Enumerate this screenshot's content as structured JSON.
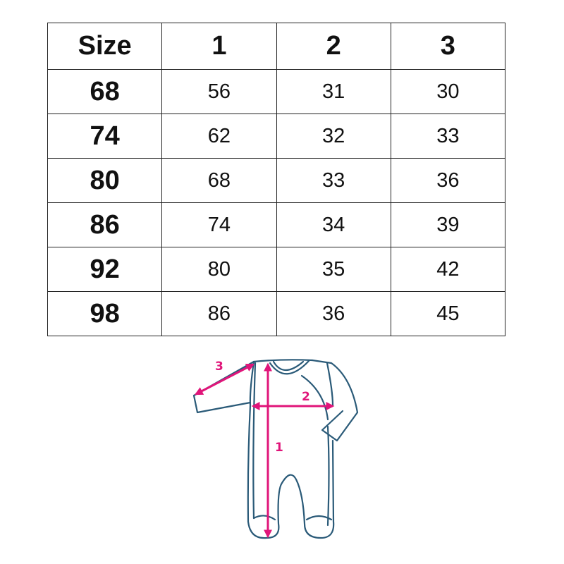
{
  "table": {
    "headers": [
      "Size",
      "1",
      "2",
      "3"
    ],
    "rows": [
      [
        "68",
        "56",
        "31",
        "30"
      ],
      [
        "74",
        "62",
        "32",
        "33"
      ],
      [
        "80",
        "68",
        "33",
        "36"
      ],
      [
        "86",
        "74",
        "34",
        "39"
      ],
      [
        "92",
        "80",
        "35",
        "42"
      ],
      [
        "98",
        "86",
        "36",
        "45"
      ]
    ]
  },
  "diagram": {
    "labels": [
      "1",
      "2",
      "3"
    ],
    "outline_color": "#2a5a78",
    "arrow_color": "#e0157a"
  }
}
